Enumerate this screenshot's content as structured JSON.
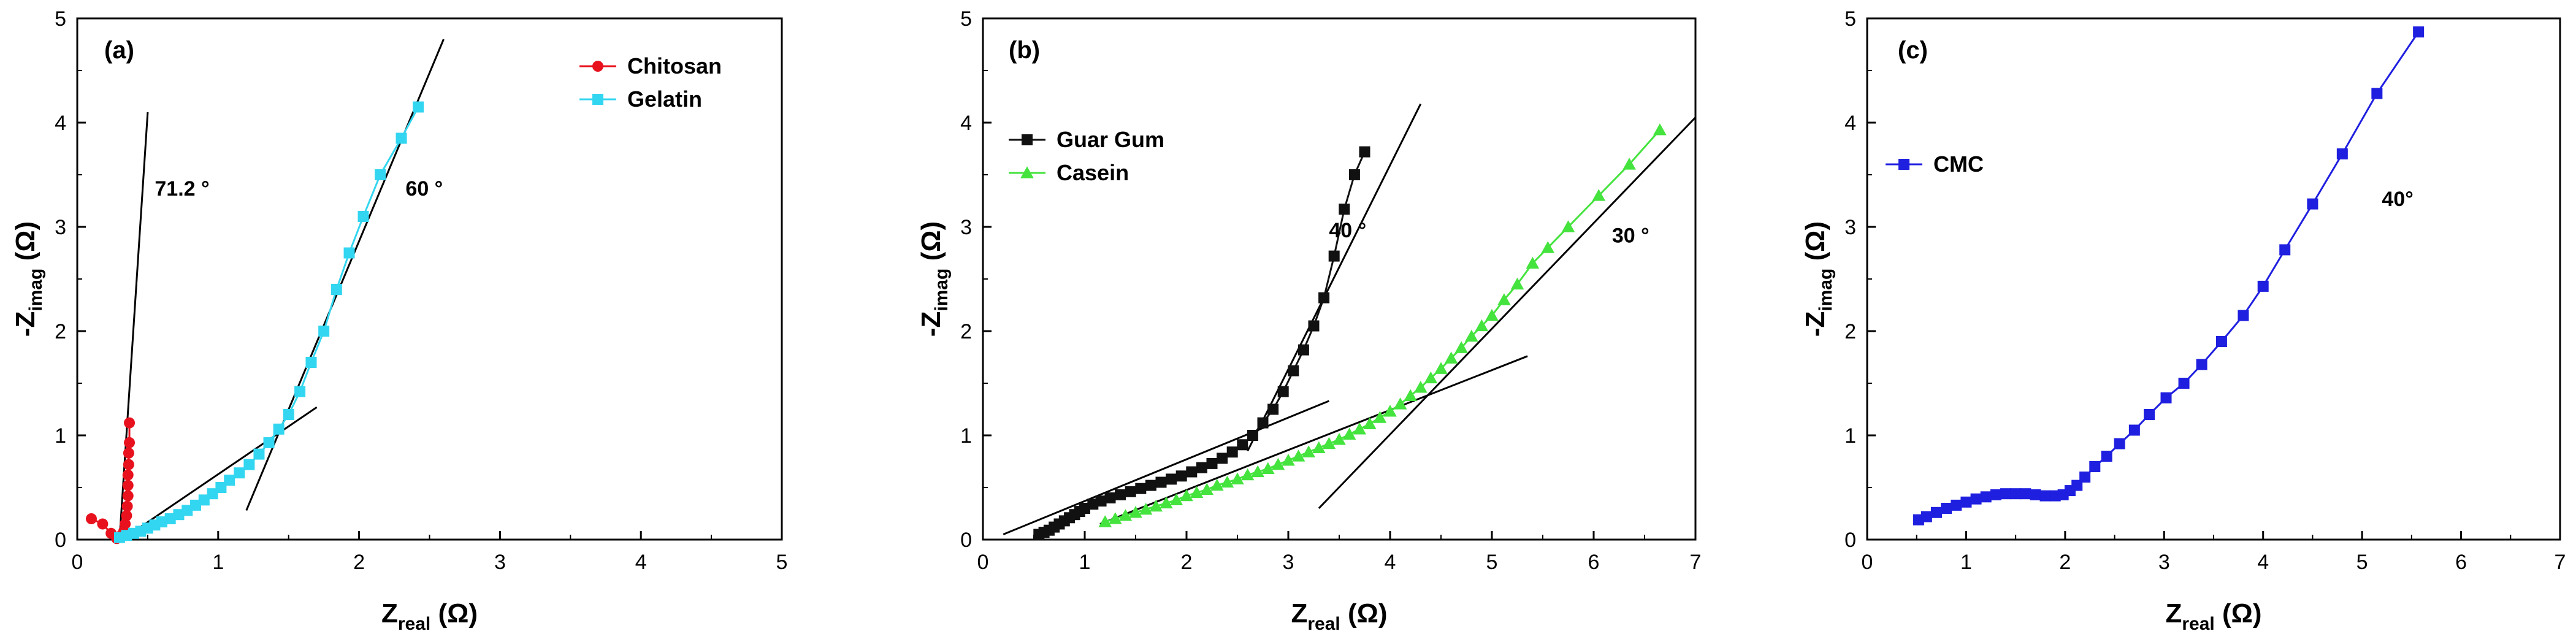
{
  "chart_data": [
    {
      "type": "scatter",
      "panel_label": "(a)",
      "xlim": [
        0,
        5
      ],
      "ylim": [
        0,
        5
      ],
      "xticks": [
        "0",
        "1",
        "2",
        "3",
        "4",
        "5"
      ],
      "yticks": [
        "0",
        "1",
        "2",
        "3",
        "4",
        "5"
      ],
      "xlabel": {
        "main": "Z",
        "sub": "real",
        "unit": " (Ω)"
      },
      "ylabel": {
        "main": "-Z",
        "sub": "imag",
        "unit": " (Ω)"
      },
      "legend_position": "top-right",
      "series": [
        {
          "name": "Chitosan",
          "color": "#e8121e",
          "marker": "circle",
          "x": [
            0.1,
            0.18,
            0.24,
            0.28,
            0.3,
            0.33,
            0.34,
            0.35,
            0.355,
            0.36,
            0.36,
            0.36,
            0.365,
            0.365,
            0.37,
            0.37
          ],
          "y": [
            0.2,
            0.15,
            0.06,
            0.01,
            0.03,
            0.08,
            0.15,
            0.23,
            0.32,
            0.42,
            0.52,
            0.62,
            0.72,
            0.83,
            0.93,
            1.12
          ]
        },
        {
          "name": "Gelatin",
          "color": "#33d6f0",
          "marker": "square",
          "x": [
            0.3,
            0.35,
            0.4,
            0.45,
            0.5,
            0.55,
            0.6,
            0.66,
            0.72,
            0.78,
            0.84,
            0.9,
            0.96,
            1.02,
            1.08,
            1.15,
            1.22,
            1.29,
            1.36,
            1.43,
            1.5,
            1.58,
            1.66,
            1.75,
            1.84,
            1.93,
            2.03,
            2.15,
            2.3,
            2.42
          ],
          "y": [
            0.02,
            0.04,
            0.06,
            0.08,
            0.11,
            0.14,
            0.17,
            0.2,
            0.24,
            0.28,
            0.33,
            0.38,
            0.44,
            0.5,
            0.57,
            0.64,
            0.72,
            0.82,
            0.93,
            1.06,
            1.2,
            1.42,
            1.7,
            2.0,
            2.4,
            2.75,
            3.1,
            3.5,
            3.85,
            4.15
          ]
        }
      ],
      "fit_lines": [
        {
          "x": [
            0.3,
            0.5
          ],
          "y": [
            0,
            4.1
          ]
        },
        {
          "x": [
            0.35,
            1.7
          ],
          "y": [
            0.03,
            1.27
          ]
        },
        {
          "x": [
            1.2,
            2.6
          ],
          "y": [
            0.28,
            4.8
          ]
        }
      ],
      "annotations": [
        {
          "text": "71.2 °",
          "x": 0.55,
          "y": 3.3
        },
        {
          "text": "60 °",
          "x": 2.33,
          "y": 3.3
        }
      ]
    },
    {
      "type": "scatter",
      "panel_label": "(b)",
      "xlim": [
        0,
        7
      ],
      "ylim": [
        0,
        5
      ],
      "xticks": [
        "0",
        "1",
        "2",
        "3",
        "4",
        "5",
        "6",
        "7"
      ],
      "yticks": [
        "0",
        "1",
        "2",
        "3",
        "4",
        "5"
      ],
      "xlabel": {
        "main": "Z",
        "sub": "real",
        "unit": " (Ω)"
      },
      "ylabel": {
        "main": "-Z",
        "sub": "imag",
        "unit": " (Ω)"
      },
      "legend_position": "top-left",
      "series": [
        {
          "name": "Guar Gum",
          "color": "#111111",
          "marker": "square",
          "x": [
            0.55,
            0.6,
            0.65,
            0.7,
            0.75,
            0.8,
            0.85,
            0.9,
            0.95,
            1.0,
            1.08,
            1.16,
            1.25,
            1.35,
            1.45,
            1.55,
            1.65,
            1.75,
            1.85,
            1.95,
            2.05,
            2.15,
            2.25,
            2.35,
            2.45,
            2.55,
            2.65,
            2.75,
            2.85,
            2.95,
            3.05,
            3.15,
            3.25,
            3.35,
            3.45,
            3.55,
            3.65,
            3.75
          ],
          "y": [
            0.05,
            0.07,
            0.09,
            0.12,
            0.15,
            0.18,
            0.21,
            0.24,
            0.27,
            0.3,
            0.34,
            0.37,
            0.4,
            0.43,
            0.46,
            0.49,
            0.52,
            0.55,
            0.58,
            0.61,
            0.65,
            0.69,
            0.73,
            0.78,
            0.84,
            0.91,
            1.0,
            1.12,
            1.25,
            1.42,
            1.62,
            1.82,
            2.05,
            2.32,
            2.72,
            3.17,
            3.5,
            3.72
          ]
        },
        {
          "name": "Casein",
          "color": "#44e33d",
          "marker": "triangle",
          "x": [
            1.2,
            1.3,
            1.4,
            1.5,
            1.6,
            1.7,
            1.8,
            1.9,
            2.0,
            2.1,
            2.2,
            2.3,
            2.4,
            2.5,
            2.6,
            2.7,
            2.8,
            2.9,
            3.0,
            3.1,
            3.2,
            3.3,
            3.4,
            3.5,
            3.6,
            3.7,
            3.8,
            3.9,
            4.0,
            4.1,
            4.2,
            4.3,
            4.4,
            4.5,
            4.6,
            4.7,
            4.8,
            4.9,
            5.0,
            5.12,
            5.25,
            5.4,
            5.55,
            5.75,
            6.05,
            6.35,
            6.65
          ],
          "y": [
            0.17,
            0.2,
            0.23,
            0.26,
            0.29,
            0.32,
            0.35,
            0.38,
            0.42,
            0.45,
            0.48,
            0.52,
            0.55,
            0.58,
            0.62,
            0.65,
            0.68,
            0.72,
            0.76,
            0.8,
            0.84,
            0.88,
            0.92,
            0.96,
            1.01,
            1.06,
            1.11,
            1.17,
            1.23,
            1.3,
            1.38,
            1.46,
            1.55,
            1.64,
            1.74,
            1.84,
            1.95,
            2.05,
            2.15,
            2.3,
            2.45,
            2.65,
            2.8,
            3.0,
            3.3,
            3.6,
            3.93
          ]
        }
      ],
      "fit_lines": [
        {
          "x": [
            0.2,
            3.4
          ],
          "y": [
            0.05,
            1.33
          ]
        },
        {
          "x": [
            2.6,
            4.3
          ],
          "y": [
            0.85,
            4.18
          ]
        },
        {
          "x": [
            1.15,
            5.35
          ],
          "y": [
            0.15,
            1.76
          ]
        },
        {
          "x": [
            3.3,
            7.0
          ],
          "y": [
            0.3,
            4.05
          ]
        }
      ],
      "annotations": [
        {
          "text": "40 °",
          "x": 3.4,
          "y": 2.9
        },
        {
          "text": "30 °",
          "x": 6.18,
          "y": 2.85
        }
      ]
    },
    {
      "type": "line",
      "panel_label": "(c)",
      "xlim": [
        0,
        7
      ],
      "ylim": [
        0,
        5
      ],
      "xticks": [
        "0",
        "1",
        "2",
        "3",
        "4",
        "5",
        "6",
        "7"
      ],
      "yticks": [
        "0",
        "1",
        "2",
        "3",
        "4",
        "5"
      ],
      "xlabel": {
        "main": "Z",
        "sub": "real",
        "unit": " (Ω)"
      },
      "ylabel": {
        "main": "-Z",
        "sub": "imag",
        "unit": " (Ω)"
      },
      "legend_position": "top-left",
      "series": [
        {
          "name": "CMC",
          "color": "#1f1fe0",
          "marker": "square",
          "x": [
            0.52,
            0.6,
            0.7,
            0.8,
            0.9,
            1.0,
            1.1,
            1.2,
            1.3,
            1.4,
            1.5,
            1.6,
            1.7,
            1.8,
            1.9,
            1.98,
            2.05,
            2.12,
            2.2,
            2.3,
            2.42,
            2.55,
            2.7,
            2.85,
            3.02,
            3.2,
            3.38,
            3.58,
            3.8,
            4.0,
            4.22,
            4.5,
            4.8,
            5.15,
            5.57
          ],
          "y": [
            0.19,
            0.22,
            0.26,
            0.3,
            0.33,
            0.36,
            0.39,
            0.41,
            0.43,
            0.44,
            0.44,
            0.44,
            0.43,
            0.42,
            0.42,
            0.43,
            0.47,
            0.52,
            0.6,
            0.7,
            0.8,
            0.92,
            1.05,
            1.2,
            1.36,
            1.5,
            1.68,
            1.9,
            2.15,
            2.43,
            2.78,
            3.22,
            3.7,
            4.28,
            4.87
          ]
        }
      ],
      "fit_lines": [],
      "annotations": [
        {
          "text": "40°",
          "x": 5.2,
          "y": 3.2
        }
      ]
    }
  ]
}
